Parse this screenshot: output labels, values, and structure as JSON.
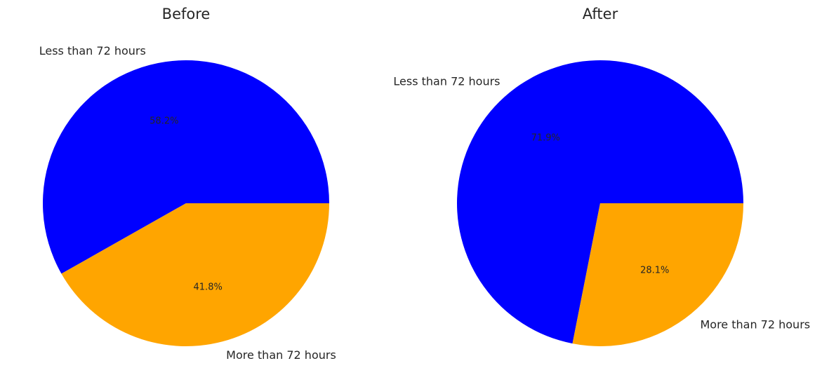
{
  "chart_data": [
    {
      "type": "pie",
      "title": "Before",
      "labels": [
        "Less than 72 hours",
        "More than 72 hours"
      ],
      "values": [
        58.2,
        41.8
      ],
      "value_labels": [
        "58.2%",
        "41.8%"
      ],
      "colors": [
        "#0000ff",
        "#ffa500"
      ]
    },
    {
      "type": "pie",
      "title": "After",
      "labels": [
        "Less than 72 hours",
        "More than 72 hours"
      ],
      "values": [
        71.9,
        28.1
      ],
      "value_labels": [
        "71.9%",
        "28.1%"
      ],
      "colors": [
        "#0000ff",
        "#ffa500"
      ]
    }
  ]
}
